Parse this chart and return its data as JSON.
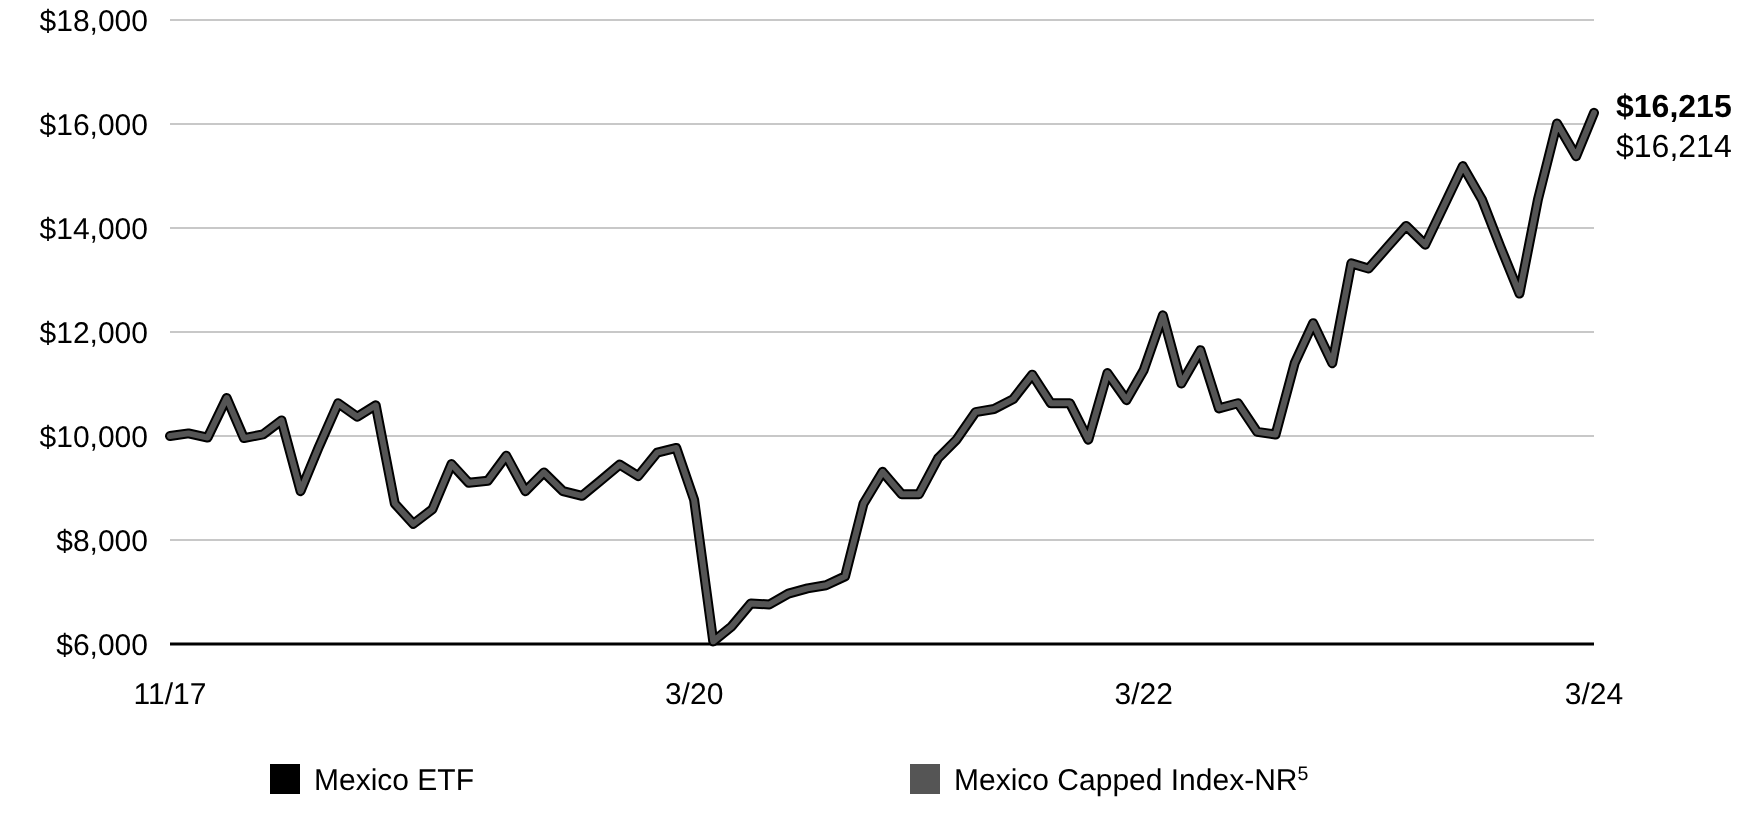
{
  "chart_data": {
    "type": "line",
    "x": [
      "2017-11",
      "2017-12",
      "2018-01",
      "2018-02",
      "2018-03",
      "2018-04",
      "2018-05",
      "2018-06",
      "2018-07",
      "2018-08",
      "2018-09",
      "2018-10",
      "2018-11",
      "2018-12",
      "2019-01",
      "2019-02",
      "2019-03",
      "2019-04",
      "2019-05",
      "2019-06",
      "2019-07",
      "2019-08",
      "2019-09",
      "2019-10",
      "2019-11",
      "2019-12",
      "2020-01",
      "2020-02",
      "2020-03",
      "2020-04",
      "2020-05",
      "2020-06",
      "2020-07",
      "2020-08",
      "2020-09",
      "2020-10",
      "2020-11",
      "2020-12",
      "2021-01",
      "2021-02",
      "2021-03",
      "2021-04",
      "2021-05",
      "2021-06",
      "2021-07",
      "2021-08",
      "2021-09",
      "2021-10",
      "2021-11",
      "2021-12",
      "2022-01",
      "2022-02",
      "2022-03",
      "2022-04",
      "2022-05",
      "2022-06",
      "2022-07",
      "2022-08",
      "2022-09",
      "2022-10",
      "2022-11",
      "2022-12",
      "2023-01",
      "2023-02",
      "2023-03",
      "2023-04",
      "2023-05",
      "2023-06",
      "2023-07",
      "2023-08",
      "2023-09",
      "2023-10",
      "2023-11",
      "2023-12",
      "2024-01",
      "2024-02",
      "2024-03"
    ],
    "series": [
      {
        "name": "Mexico ETF",
        "color": "#000000",
        "values": [
          10000,
          10050,
          9970,
          10730,
          9960,
          10030,
          10300,
          8940,
          9800,
          10630,
          10370,
          10590,
          8700,
          8310,
          8590,
          9460,
          9100,
          9140,
          9620,
          8940,
          9300,
          8940,
          8850,
          9140,
          9450,
          9230,
          9680,
          9770,
          8770,
          6050,
          6340,
          6780,
          6760,
          6970,
          7070,
          7130,
          7300,
          8700,
          9310,
          8880,
          8880,
          9570,
          9930,
          10460,
          10520,
          10710,
          11180,
          10630,
          10630,
          9930,
          11210,
          10690,
          11270,
          12320,
          11010,
          11650,
          10530,
          10630,
          10080,
          10030,
          11400,
          12170,
          11400,
          13320,
          13220,
          13640,
          14040,
          13680,
          14420,
          15190,
          14550,
          13640,
          12740,
          14550,
          16010,
          15380,
          16215
        ],
        "value_labels": [
          null,
          null,
          null,
          null,
          null,
          null,
          null,
          null,
          null,
          null,
          null,
          null,
          null,
          null,
          null,
          null,
          null,
          null,
          null,
          null,
          null,
          null,
          null,
          null,
          null,
          null,
          null,
          null,
          null,
          null,
          null,
          null,
          null,
          null,
          null,
          null,
          null,
          null,
          null,
          null,
          null,
          null,
          null,
          null,
          null,
          null,
          null,
          null,
          null,
          null,
          null,
          null,
          null,
          null,
          null,
          null,
          null,
          null,
          null,
          null,
          null,
          null,
          null,
          null,
          null,
          null,
          null,
          null,
          null,
          null,
          null,
          null,
          null,
          null,
          null,
          null,
          "$16,215"
        ]
      },
      {
        "name": "Mexico Capped Index-NR$^{5}$",
        "color": "#555555",
        "values": [
          10000,
          10050,
          9970,
          10730,
          9960,
          10030,
          10300,
          8940,
          9800,
          10630,
          10370,
          10590,
          8700,
          8310,
          8590,
          9460,
          9100,
          9140,
          9620,
          8940,
          9300,
          8940,
          8850,
          9140,
          9450,
          9230,
          9680,
          9770,
          8770,
          6050,
          6340,
          6780,
          6760,
          6970,
          7070,
          7130,
          7300,
          8700,
          9310,
          8880,
          8880,
          9570,
          9930,
          10460,
          10520,
          10710,
          11180,
          10630,
          10630,
          9930,
          11210,
          10690,
          11270,
          12320,
          11010,
          11650,
          10530,
          10630,
          10080,
          10030,
          11400,
          12170,
          11400,
          13320,
          13220,
          13640,
          14040,
          13680,
          14420,
          15190,
          14550,
          13640,
          12740,
          14550,
          16010,
          15380,
          16214
        ],
        "value_labels": [
          null,
          null,
          null,
          null,
          null,
          null,
          null,
          null,
          null,
          null,
          null,
          null,
          null,
          null,
          null,
          null,
          null,
          null,
          null,
          null,
          null,
          null,
          null,
          null,
          null,
          null,
          null,
          null,
          null,
          null,
          null,
          null,
          null,
          null,
          null,
          null,
          null,
          null,
          null,
          null,
          null,
          null,
          null,
          null,
          null,
          null,
          null,
          null,
          null,
          null,
          null,
          null,
          null,
          null,
          null,
          null,
          null,
          null,
          null,
          null,
          null,
          null,
          null,
          null,
          null,
          null,
          null,
          null,
          null,
          null,
          null,
          null,
          null,
          null,
          null,
          null,
          "$16,214"
        ]
      }
    ],
    "xlim": [
      "2017-11",
      "2024-03"
    ],
    "xticks": [
      {
        "value": "2017-11",
        "label": "11/17"
      },
      {
        "value": "2020-03",
        "label": "3/20"
      },
      {
        "value": "2022-03",
        "label": "3/22"
      },
      {
        "value": "2024-03",
        "label": "3/24"
      }
    ],
    "ylim": [
      6000,
      18000
    ],
    "yticks": [
      {
        "value": 6000,
        "label": "$6,000"
      },
      {
        "value": 8000,
        "label": "$8,000"
      },
      {
        "value": 10000,
        "label": "$10,000"
      },
      {
        "value": 12000,
        "label": "$12,000"
      },
      {
        "value": 14000,
        "label": "$14,000"
      },
      {
        "value": 16000,
        "label": "$16,000"
      },
      {
        "value": 18000,
        "label": "$18,000"
      }
    ],
    "grid": "y",
    "legend": "bottom",
    "marker": "none",
    "line_style": "solid"
  }
}
